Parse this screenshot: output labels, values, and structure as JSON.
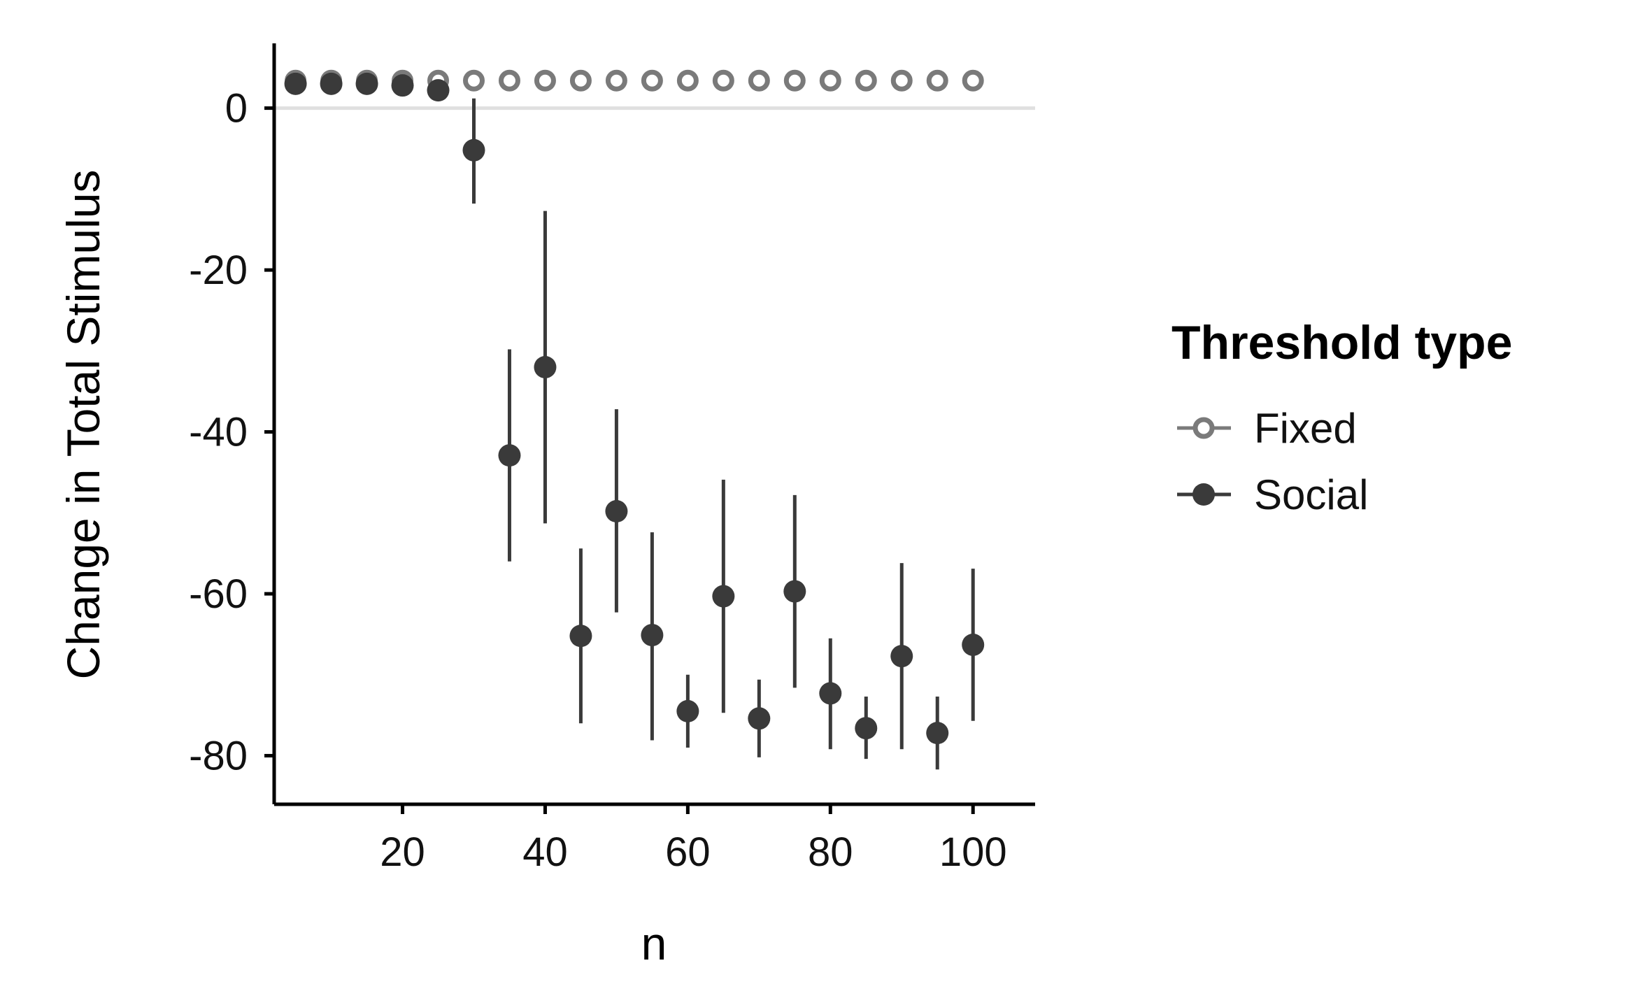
{
  "chart_data": {
    "type": "scatter",
    "title": "",
    "xlabel": "n",
    "ylabel": "Change in Total Stimulus",
    "xlim": [
      2,
      104
    ],
    "ylim": [
      -86,
      8
    ],
    "x_ticks": [
      20,
      40,
      60,
      80,
      100
    ],
    "x_tick_labels": [
      "20",
      "40",
      "60",
      "80",
      "100"
    ],
    "y_ticks": [
      0,
      -20,
      -40,
      -60,
      -80
    ],
    "y_tick_labels": [
      "0",
      "-20",
      "-40",
      "-60",
      "-80"
    ],
    "reference_line_y": 0,
    "grid": false,
    "legend": {
      "title": "Threshold type",
      "placement": "right",
      "entries": [
        "Fixed",
        "Social"
      ]
    },
    "colors": {
      "fixed": "#7a7a7a",
      "social": "#3a3a3a",
      "reference_line": "#e0e0e0",
      "axis": "#000000"
    },
    "series": [
      {
        "name": "Fixed",
        "marker": "open-circle",
        "points": [
          {
            "x": 5,
            "y": 3.4
          },
          {
            "x": 10,
            "y": 3.4
          },
          {
            "x": 15,
            "y": 3.4
          },
          {
            "x": 20,
            "y": 3.4
          },
          {
            "x": 25,
            "y": 3.4
          },
          {
            "x": 30,
            "y": 3.4
          },
          {
            "x": 35,
            "y": 3.4
          },
          {
            "x": 40,
            "y": 3.4
          },
          {
            "x": 45,
            "y": 3.4
          },
          {
            "x": 50,
            "y": 3.4
          },
          {
            "x": 55,
            "y": 3.4
          },
          {
            "x": 60,
            "y": 3.4
          },
          {
            "x": 65,
            "y": 3.4
          },
          {
            "x": 70,
            "y": 3.4
          },
          {
            "x": 75,
            "y": 3.4
          },
          {
            "x": 80,
            "y": 3.4
          },
          {
            "x": 85,
            "y": 3.4
          },
          {
            "x": 90,
            "y": 3.4
          },
          {
            "x": 95,
            "y": 3.4
          },
          {
            "x": 100,
            "y": 3.4
          }
        ]
      },
      {
        "name": "Social",
        "marker": "filled-circle",
        "points": [
          {
            "x": 5,
            "y": 3.0,
            "low": 3.0,
            "high": 3.0
          },
          {
            "x": 10,
            "y": 3.0,
            "low": 3.0,
            "high": 3.0
          },
          {
            "x": 15,
            "y": 3.0,
            "low": 3.0,
            "high": 3.0
          },
          {
            "x": 20,
            "y": 2.8,
            "low": 2.8,
            "high": 2.8
          },
          {
            "x": 25,
            "y": 2.2,
            "low": 2.2,
            "high": 2.2
          },
          {
            "x": 30,
            "y": -5.2,
            "low": -11.8,
            "high": 1.2
          },
          {
            "x": 35,
            "y": -42.9,
            "low": -56.0,
            "high": -29.8
          },
          {
            "x": 40,
            "y": -32.0,
            "low": -51.3,
            "high": -12.7
          },
          {
            "x": 45,
            "y": -65.2,
            "low": -76.0,
            "high": -54.4
          },
          {
            "x": 50,
            "y": -49.8,
            "low": -62.3,
            "high": -37.2
          },
          {
            "x": 55,
            "y": -65.1,
            "low": -78.1,
            "high": -52.4
          },
          {
            "x": 60,
            "y": -74.5,
            "low": -79.0,
            "high": -70.0
          },
          {
            "x": 65,
            "y": -60.3,
            "low": -74.7,
            "high": -45.9
          },
          {
            "x": 70,
            "y": -75.4,
            "low": -80.2,
            "high": -70.6
          },
          {
            "x": 75,
            "y": -59.7,
            "low": -71.6,
            "high": -47.8
          },
          {
            "x": 80,
            "y": -72.3,
            "low": -79.2,
            "high": -65.5
          },
          {
            "x": 85,
            "y": -76.6,
            "low": -80.4,
            "high": -72.7
          },
          {
            "x": 90,
            "y": -67.7,
            "low": -79.2,
            "high": -56.2
          },
          {
            "x": 95,
            "y": -77.2,
            "low": -81.7,
            "high": -72.7
          },
          {
            "x": 100,
            "y": -66.3,
            "low": -75.7,
            "high": -56.9
          }
        ]
      }
    ]
  }
}
